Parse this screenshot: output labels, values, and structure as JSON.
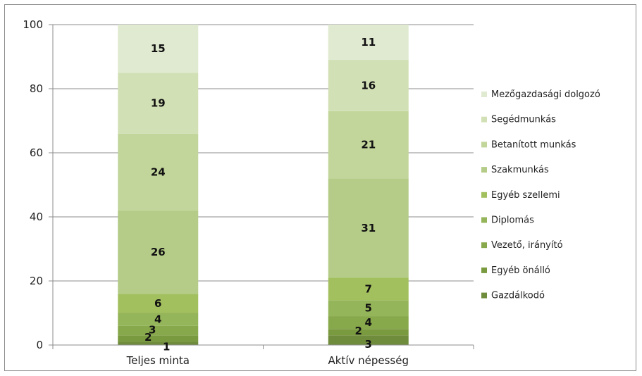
{
  "chart_data": {
    "type": "bar",
    "stacked": true,
    "categories": [
      "Teljes minta",
      "Aktív népesség"
    ],
    "ylim": [
      0,
      100
    ],
    "yticks": [
      "0",
      "20",
      "40",
      "60",
      "80",
      "100"
    ],
    "grid": true,
    "legend_position": "right",
    "series": [
      {
        "name": "Gazdálkodó",
        "color": "#6f8c3c",
        "values": [
          1,
          3
        ]
      },
      {
        "name": "Egyéb önálló",
        "color": "#7a9a3f",
        "values": [
          2,
          2
        ]
      },
      {
        "name": "Vezető, irányító",
        "color": "#88a84c",
        "values": [
          3,
          4
        ]
      },
      {
        "name": "Diplomás",
        "color": "#95b55a",
        "values": [
          4,
          5
        ]
      },
      {
        "name": "Egyéb szellemi",
        "color": "#a3c05f",
        "values": [
          6,
          7
        ]
      },
      {
        "name": "Szakmunkás",
        "color": "#b4cc88",
        "values": [
          26,
          31
        ]
      },
      {
        "name": "Betanított munkás",
        "color": "#c2d69b",
        "values": [
          24,
          21
        ]
      },
      {
        "name": "Segédmunkás",
        "color": "#d2e0b6",
        "values": [
          19,
          16
        ]
      },
      {
        "name": "Mezőgazdasági dolgozó",
        "color": "#e0ead0",
        "values": [
          15,
          11
        ]
      }
    ]
  }
}
